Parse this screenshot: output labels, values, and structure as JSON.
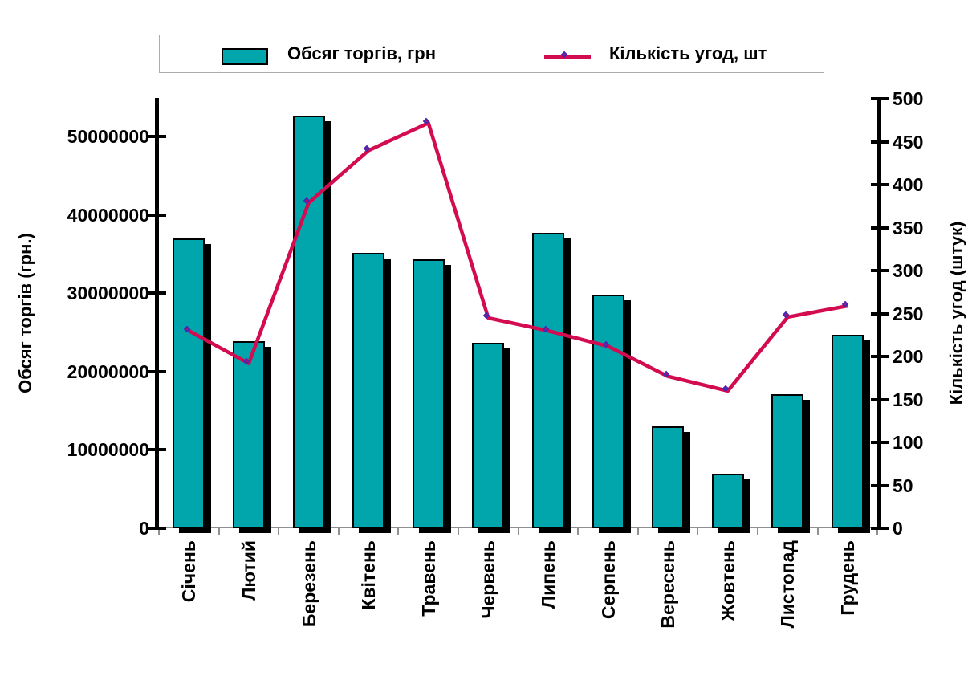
{
  "page": {
    "background": "#ffffff"
  },
  "legend": {
    "items": [
      {
        "label": "Обсяг торгів, грн",
        "swatch": "bar"
      },
      {
        "label": "Кількість угод, шт",
        "swatch": "line-diamond"
      }
    ]
  },
  "chart_data": {
    "type": "bar",
    "combo": "bar+line",
    "categories": [
      "Січень",
      "Лютий",
      "Березень",
      "Квітень",
      "Травень",
      "Червень",
      "Липень",
      "Серпень",
      "Вересень",
      "Жовтень",
      "Листопад",
      "Грудень"
    ],
    "series": [
      {
        "name": "Обсяг торгів, грн",
        "type": "bar",
        "axis": "left",
        "color": "#00a6ac",
        "shadow_color": "#000000",
        "values": [
          37000000,
          23900000,
          52700000,
          35100000,
          34300000,
          23700000,
          37700000,
          29800000,
          13000000,
          7000000,
          17100000,
          24700000
        ]
      },
      {
        "name": "Кількість угод, шт",
        "type": "line",
        "axis": "right",
        "color": "#d30b50",
        "marker": "diamond",
        "marker_fill": "#c40e63",
        "marker_border": "#3f2bb5",
        "values": [
          230,
          192,
          379,
          440,
          472,
          245,
          230,
          212,
          177,
          160,
          246,
          259
        ]
      }
    ],
    "left_axis": {
      "title": "Обсяг торгів (грн.)",
      "min": 0,
      "max": 50000000,
      "step": 10000000,
      "tick_labels": [
        "0",
        "10000000",
        "20000000",
        "30000000",
        "40000000",
        "50000000"
      ]
    },
    "right_axis": {
      "title": "Кількість угод (штук)",
      "min": 0,
      "max": 500,
      "step": 50,
      "tick_labels": [
        "0",
        "50",
        "100",
        "150",
        "200",
        "250",
        "300",
        "350",
        "400",
        "450",
        "500"
      ]
    },
    "legend_position": "top",
    "grid": false,
    "plot_background": "#ffffff"
  }
}
